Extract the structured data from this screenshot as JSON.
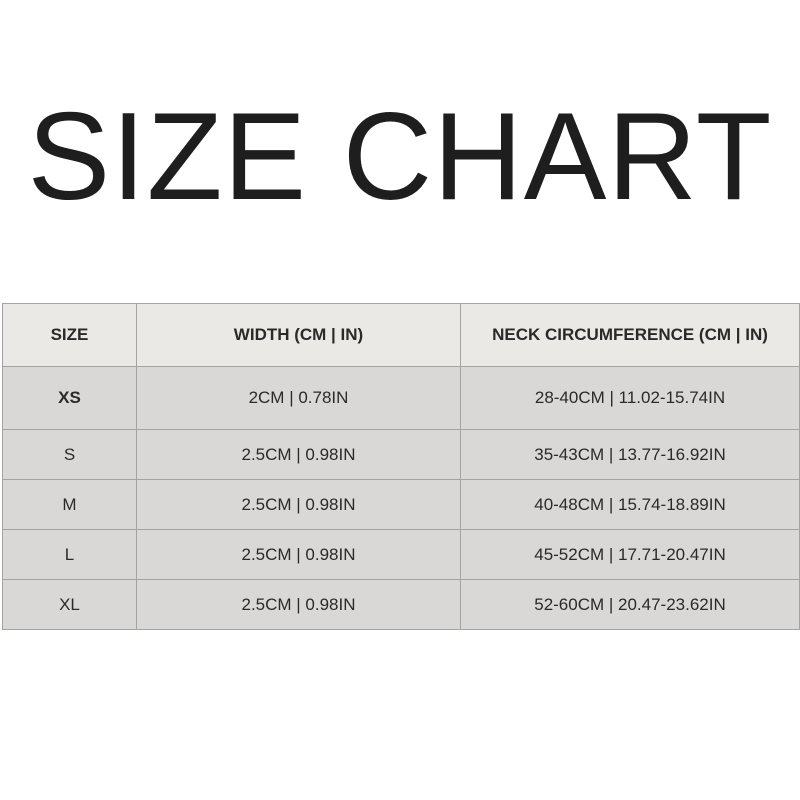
{
  "title": "SIZE CHART",
  "table": {
    "headers": [
      "SIZE",
      "WIDTH (CM | IN)",
      "NECK CIRCUMFERENCE (CM | IN)"
    ],
    "rows": [
      [
        "XS",
        "2CM | 0.78IN",
        "28-40CM | 11.02-15.74IN"
      ],
      [
        "S",
        "2.5CM | 0.98IN",
        "35-43CM | 13.77-16.92IN"
      ],
      [
        "M",
        "2.5CM | 0.98IN",
        "40-48CM | 15.74-18.89IN"
      ],
      [
        "L",
        "2.5CM | 0.98IN",
        "45-52CM | 17.71-20.47IN"
      ],
      [
        "XL",
        "2.5CM | 0.98IN",
        "52-60CM | 20.47-23.62IN"
      ]
    ]
  },
  "colors": {
    "header_bg": "#ebe9e6",
    "row_bg": "#d9d8d7",
    "border": "#a3a3a3",
    "text": "#222222"
  }
}
